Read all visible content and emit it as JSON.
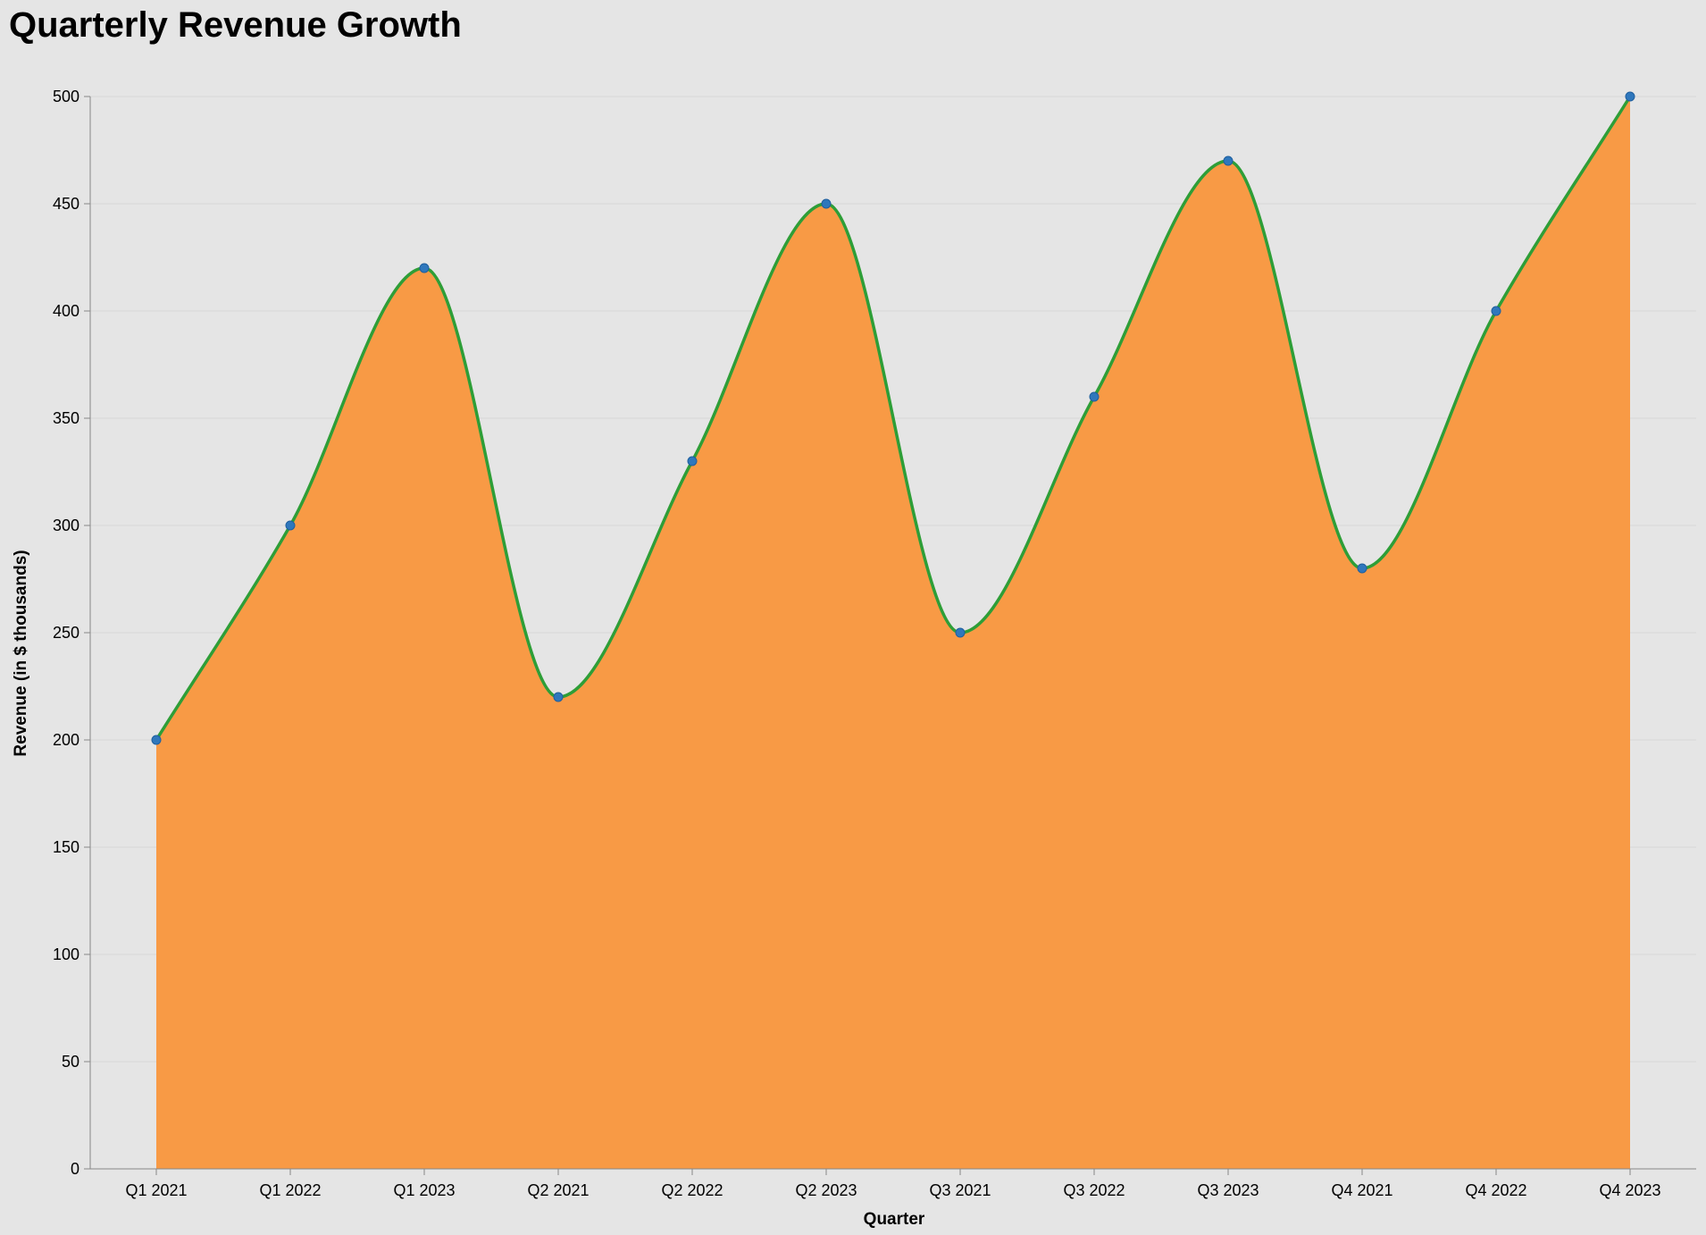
{
  "chart_data": {
    "type": "area",
    "title": "Quarterly Revenue Growth",
    "xlabel": "Quarter",
    "ylabel": "Revenue (in $ thousands)",
    "categories": [
      "Q1 2021",
      "Q1 2022",
      "Q1 2023",
      "Q2 2021",
      "Q2 2022",
      "Q2 2023",
      "Q3 2021",
      "Q3 2022",
      "Q3 2023",
      "Q4 2021",
      "Q4 2022",
      "Q4 2023"
    ],
    "values": [
      200,
      300,
      420,
      220,
      330,
      450,
      250,
      360,
      470,
      280,
      400,
      500
    ],
    "ylim": [
      0,
      500
    ],
    "yticks": [
      0,
      50,
      100,
      150,
      200,
      250,
      300,
      350,
      400,
      450,
      500
    ],
    "grid": true,
    "interpolation": "monotone",
    "colors": {
      "background": "#e5e5e5",
      "area_fill": "#f89a45",
      "line": "#2e9e37",
      "points": "#2f77bc",
      "grid": "#d8d8d8",
      "axis": "#888888"
    }
  }
}
